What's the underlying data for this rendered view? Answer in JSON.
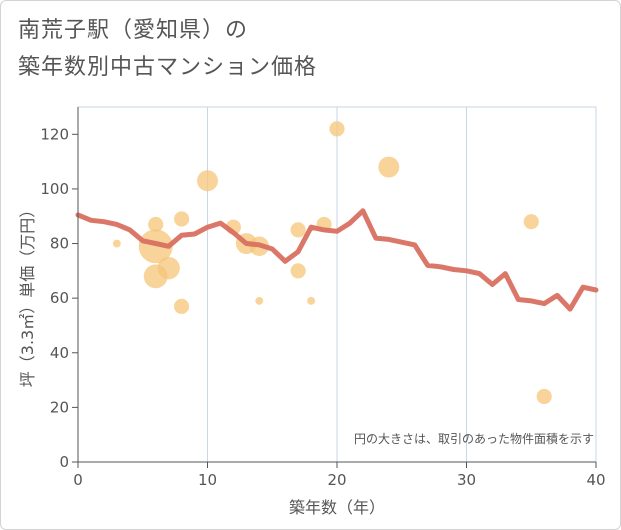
{
  "title": {
    "line1": "南荒子駅（愛知県）の",
    "line2": "築年数別中古マンション価格"
  },
  "colors": {
    "line": "#d97060",
    "bubble": "#f5c57a",
    "grid": "#c8d6e6",
    "axis": "#555555"
  },
  "chart_data": {
    "type": "scatter",
    "xlabel": "築年数（年）",
    "ylabel": "坪（3.3㎡）単価（万円）",
    "xlim": [
      0,
      40
    ],
    "ylim": [
      0,
      130
    ],
    "xticks": [
      0,
      10,
      20,
      30,
      40
    ],
    "yticks": [
      0,
      20,
      40,
      60,
      80,
      100,
      120
    ],
    "grid": true,
    "annotation": "円の大きさは、取引のあった物件面積を示す",
    "bubbles": [
      {
        "x": 3,
        "y": 80,
        "size": 0.1
      },
      {
        "x": 6,
        "y": 87,
        "size": 0.35
      },
      {
        "x": 6,
        "y": 79,
        "size": 1.0
      },
      {
        "x": 6,
        "y": 68,
        "size": 0.65
      },
      {
        "x": 7,
        "y": 71,
        "size": 0.6
      },
      {
        "x": 8,
        "y": 89,
        "size": 0.35
      },
      {
        "x": 8,
        "y": 57,
        "size": 0.35
      },
      {
        "x": 10,
        "y": 103,
        "size": 0.55
      },
      {
        "x": 12,
        "y": 86,
        "size": 0.35
      },
      {
        "x": 13,
        "y": 80,
        "size": 0.55
      },
      {
        "x": 14,
        "y": 79,
        "size": 0.5
      },
      {
        "x": 14,
        "y": 59,
        "size": 0.1
      },
      {
        "x": 17,
        "y": 85,
        "size": 0.35
      },
      {
        "x": 17,
        "y": 70,
        "size": 0.35
      },
      {
        "x": 18,
        "y": 59,
        "size": 0.1
      },
      {
        "x": 19,
        "y": 87,
        "size": 0.35
      },
      {
        "x": 20,
        "y": 122,
        "size": 0.35
      },
      {
        "x": 24,
        "y": 108,
        "size": 0.55
      },
      {
        "x": 35,
        "y": 88,
        "size": 0.35
      },
      {
        "x": 36,
        "y": 24,
        "size": 0.35
      }
    ],
    "series": [
      {
        "x": [
          0,
          1,
          2,
          3,
          4,
          5,
          6,
          7,
          8,
          9,
          10,
          11,
          12,
          13,
          14,
          15,
          16,
          17,
          18,
          19,
          20,
          21,
          22,
          23,
          24,
          25,
          26,
          27,
          28,
          29,
          30,
          31,
          32,
          33,
          34,
          35,
          36,
          37,
          38,
          39,
          40
        ],
        "values": [
          90.5,
          88.5,
          88,
          87,
          85,
          81,
          80,
          79,
          83,
          83.5,
          86,
          87.5,
          84,
          80,
          79.5,
          78,
          73.5,
          77,
          86,
          85,
          84.5,
          87.5,
          92,
          82,
          81.5,
          80.5,
          79.5,
          72,
          71.5,
          70.5,
          70,
          69,
          65,
          69,
          59.5,
          59,
          58,
          61,
          56,
          64,
          63
        ]
      }
    ]
  }
}
